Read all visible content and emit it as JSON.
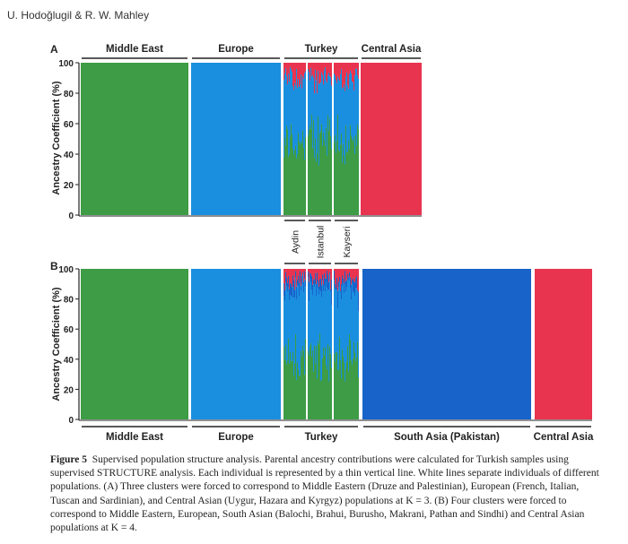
{
  "header": {
    "authors": "U. Hodoğlugil & R. W. Mahley"
  },
  "colors": {
    "middle_east": "#3d9c45",
    "europe": "#1a8fe0",
    "central_asia": "#e8344f",
    "south_asia": "#1863c9"
  },
  "chart_data": [
    {
      "type": "bar",
      "panel": "A",
      "title": "A",
      "ylabel": "Ancestry Coefficient (%)",
      "ylim": [
        0,
        100
      ],
      "yticks": [
        0,
        20,
        40,
        60,
        80,
        100
      ],
      "population_labels": [
        "Middle East",
        "Europe",
        "Turkey",
        "Central Asia"
      ],
      "series": [
        {
          "name": "Middle East",
          "values": [
            100,
            0,
            48,
            0
          ]
        },
        {
          "name": "Europe",
          "values": [
            0,
            100,
            40,
            0
          ]
        },
        {
          "name": "Central Asia",
          "values": [
            0,
            0,
            12,
            100
          ]
        }
      ]
    },
    {
      "type": "bar",
      "panel": "B",
      "title": "B",
      "ylabel": "Ancestry Coefficient (%)",
      "ylim": [
        0,
        100
      ],
      "yticks": [
        0,
        20,
        40,
        60,
        80,
        100
      ],
      "population_labels": [
        "Middle East",
        "Europe",
        "Turkey",
        "South Asia (Pakistan)",
        "Central Asia"
      ],
      "series": [
        {
          "name": "Middle East",
          "values": [
            100,
            0,
            40,
            0,
            0
          ]
        },
        {
          "name": "Europe",
          "values": [
            0,
            100,
            45,
            0,
            0
          ]
        },
        {
          "name": "South Asia",
          "values": [
            0,
            0,
            8,
            100,
            0
          ]
        },
        {
          "name": "Central Asia",
          "values": [
            0,
            0,
            7,
            0,
            100
          ]
        }
      ]
    }
  ],
  "turkey_subgroups": [
    "Aydin",
    "Istanbul",
    "Kayseri"
  ],
  "caption": {
    "label": "Figure 5",
    "text": "Supervised population structure analysis. Parental ancestry contributions were calculated for Turkish samples using supervised STRUCTURE analysis. Each individual is represented by a thin vertical line. White lines separate individuals of different populations. (A) Three clusters were forced to correspond to Middle Eastern (Druze and Palestinian), European (French, Italian, Tuscan and Sardinian), and Central Asian (Uygur, Hazara and Kyrgyz) populations at K = 3. (B) Four clusters were forced to correspond to Middle Eastern, European, South Asian (Balochi, Brahui, Burusho, Makrani, Pathan and Sindhi) and Central Asian populations at K = 4."
  }
}
